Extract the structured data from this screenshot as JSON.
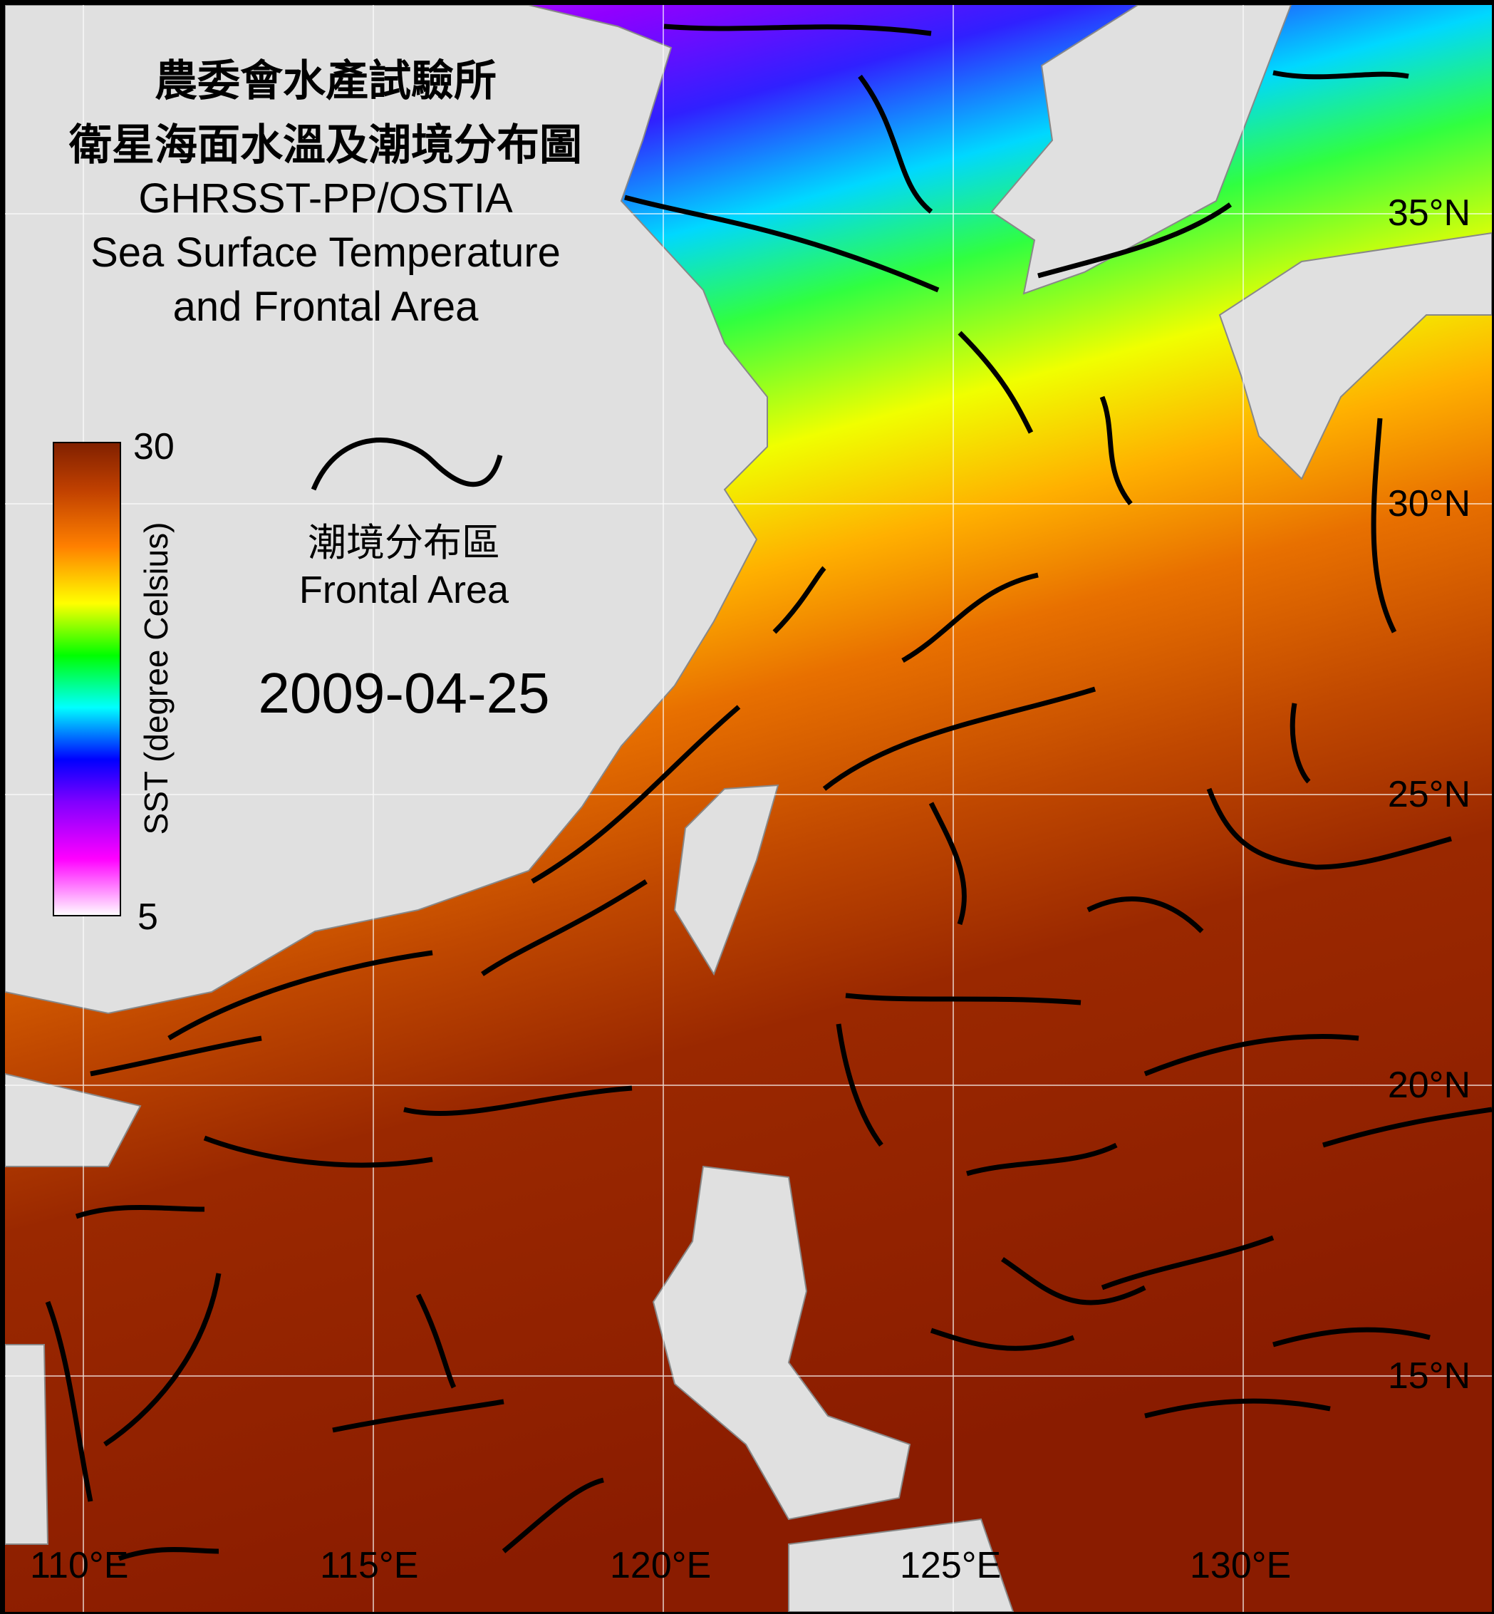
{
  "title": {
    "zh_line1": "農委會水產試驗所",
    "zh_line2": "衛星海面水溫及潮境分布圖",
    "en_line1": "GHRSST-PP/OSTIA",
    "en_line2": "Sea Surface Temperature",
    "en_line3": "and Frontal Area"
  },
  "colorbar": {
    "label": "SST (degree Celsius)",
    "max_label": "30",
    "min_label": "5",
    "min": 5,
    "max": 30,
    "colors": [
      "#ffffff",
      "#ff00ff",
      "#8000ff",
      "#0000ff",
      "#00ffff",
      "#00ff00",
      "#ffff00",
      "#ff8000",
      "#c04000",
      "#802000"
    ]
  },
  "legend": {
    "symbol": "black-wave-line",
    "label_zh": "潮境分布區",
    "label_en": "Frontal Area"
  },
  "date": "2009-04-25",
  "grid": {
    "longitudes": [
      "110°E",
      "115°E",
      "120°E",
      "125°E",
      "130°E"
    ],
    "latitudes": [
      "35°N",
      "30°N",
      "25°N",
      "20°N",
      "15°N"
    ]
  },
  "colors": {
    "land": "#e0e0e0",
    "fronts": "#000000",
    "grid": "#ffffff"
  }
}
